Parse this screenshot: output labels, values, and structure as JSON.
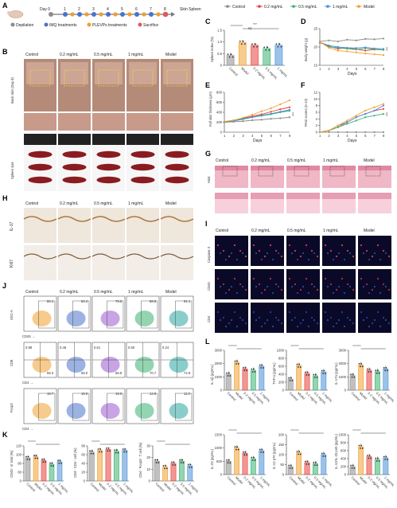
{
  "groups": [
    "Control",
    "0.2 mg/mL",
    "0.5 mg/mL",
    "1 mg/mL",
    "Model"
  ],
  "colors": {
    "Control": "#8c8c8c",
    "0.2 mg/mL": "#e8413b",
    "0.5 mg/mL": "#3cb371",
    "1 mg/mL": "#4b8fd6",
    "Model": "#f0a030",
    "point": "#e05a5a",
    "pink": "#f0b7c6",
    "deeppink": "#d86a8a"
  },
  "panels": {
    "A": {
      "label": "A",
      "days": [
        "Day 0",
        "1",
        "2",
        "3",
        "4",
        "5",
        "6",
        "7",
        "8"
      ],
      "end_labels": [
        "Skin",
        "Spleen"
      ],
      "legend": [
        "Depilation",
        "IMQ treatments",
        "PLEVPs treatments",
        "Sacrifice"
      ]
    },
    "B": {
      "label": "B",
      "row1": "Back skin (Day 8)",
      "row2": "Spleen size"
    },
    "C": {
      "label": "C",
      "ylabel": "Spleen index (%)",
      "sig": [
        "***",
        "ns"
      ],
      "groups": [
        "Control",
        "Model",
        "0.2 mg/mL",
        "0.5 mg/mL",
        "1 mg/mL"
      ]
    },
    "D": {
      "label": "D",
      "ylabel": "Body weight (g)",
      "xlabel": "Days",
      "sig": "***"
    },
    "E": {
      "label": "E",
      "ylabel": "Full skin thickness (μm)",
      "xlabel": "Days",
      "sig": "***"
    },
    "F": {
      "label": "F",
      "ylabel": "PASI scores (0-12)",
      "xlabel": "Days",
      "sig": "***"
    },
    "G": {
      "label": "G",
      "row": "H&E"
    },
    "H": {
      "label": "H",
      "rows": [
        "IL-17",
        "Ki67"
      ]
    },
    "I": {
      "label": "I",
      "rows": [
        "Caspase 3",
        "CD45",
        "CD4"
      ]
    },
    "J": {
      "label": "J",
      "rows": [
        {
          "ylabel": "SSC-A",
          "xlabel": "CD45",
          "values": [
            "80.1",
            "84.4",
            "79.5",
            "88.6",
            "91.1"
          ]
        },
        {
          "ylabel": "CD8",
          "xlabel": "CD4",
          "tl": [
            "0.98",
            "0.48",
            "0.61",
            "0.50",
            "0.24"
          ],
          "br": [
            "58.3",
            "65.0",
            "58.8",
            "70.7",
            "74.9"
          ]
        },
        {
          "ylabel": "Foxp3",
          "xlabel": "CD4",
          "values": [
            "18.7",
            "16.0",
            "19.0",
            "14.6",
            "11.0"
          ]
        }
      ]
    },
    "K": {
      "label": "K",
      "ylabels": [
        "CD45⁺ in total (%)",
        "CD3⁺ CD4⁺ cell (%)",
        "CD4⁺ Foxp3⁺ T cell (%)"
      ]
    },
    "L": {
      "label": "L",
      "ylabels": [
        "IL-1β (pg/mL)",
        "TNF-α (pg/mL)",
        "IL-17α (pg/mL)",
        "IL-23 (pg/mL)",
        "IL-12 p70 (pg/mL)",
        "IL-12/IL-23 p40 (pg/mL)"
      ]
    }
  },
  "chart_data": [
    {
      "id": "C",
      "type": "bar",
      "categories": [
        "Control",
        "Model",
        "0.2 mg/mL",
        "0.5 mg/mL",
        "1 mg/mL"
      ],
      "values": [
        0.42,
        0.98,
        0.86,
        0.72,
        0.86
      ],
      "ylim": [
        0,
        1.5
      ],
      "ylabel": "Spleen index (%)",
      "yticks": [
        "0",
        "0.5",
        "1.0",
        "1.5"
      ]
    },
    {
      "id": "D",
      "type": "line",
      "x": [
        1,
        2,
        3,
        4,
        5,
        6,
        7,
        8
      ],
      "ylim": [
        15,
        25
      ],
      "yticks": [
        "15",
        "20",
        "25"
      ],
      "ylabel": "Body weight (g)",
      "xlabel": "Days",
      "series": [
        {
          "name": "Control",
          "values": [
            21.5,
            21.8,
            21.5,
            22.0,
            21.8,
            22.2,
            22.1,
            22.3
          ]
        },
        {
          "name": "0.2 mg/mL",
          "values": [
            21.2,
            20.2,
            19.5,
            19.8,
            19.4,
            19.0,
            19.3,
            19.2
          ]
        },
        {
          "name": "0.5 mg/mL",
          "values": [
            21.4,
            20.0,
            19.8,
            19.5,
            19.3,
            19.6,
            19.4,
            19.2
          ]
        },
        {
          "name": "1 mg/mL",
          "values": [
            21.3,
            20.4,
            20.0,
            19.8,
            19.7,
            19.9,
            19.6,
            19.5
          ]
        },
        {
          "name": "Model",
          "values": [
            21.4,
            19.8,
            19.0,
            18.8,
            18.5,
            18.2,
            18.0,
            17.8
          ]
        }
      ]
    },
    {
      "id": "E",
      "type": "line",
      "x": [
        1,
        2,
        3,
        4,
        5,
        6,
        7,
        8
      ],
      "ylim": [
        0,
        800
      ],
      "yticks": [
        "0",
        "200",
        "400",
        "600",
        "800"
      ],
      "ylabel": "Full skin thickness (μm)",
      "xlabel": "Days",
      "series": [
        {
          "name": "Control",
          "values": [
            200,
            210,
            220,
            240,
            250,
            270,
            280,
            300
          ]
        },
        {
          "name": "0.2 mg/mL",
          "values": [
            210,
            230,
            280,
            320,
            360,
            410,
            460,
            500
          ]
        },
        {
          "name": "0.5 mg/mL",
          "values": [
            205,
            225,
            260,
            300,
            330,
            360,
            400,
            430
          ]
        },
        {
          "name": "1 mg/mL",
          "values": [
            210,
            230,
            270,
            300,
            340,
            370,
            410,
            450
          ]
        },
        {
          "name": "Model",
          "values": [
            215,
            240,
            290,
            350,
            420,
            480,
            560,
            640
          ]
        }
      ]
    },
    {
      "id": "F",
      "type": "line",
      "x": [
        1,
        2,
        3,
        4,
        5,
        6,
        7,
        8
      ],
      "ylim": [
        0,
        12
      ],
      "yticks": [
        "0",
        "2",
        "4",
        "6",
        "8",
        "10",
        "12"
      ],
      "ylabel": "PASI scores (0-12)",
      "xlabel": "Days",
      "series": [
        {
          "name": "Control",
          "values": [
            0,
            0,
            0,
            0,
            0,
            0,
            0,
            0
          ]
        },
        {
          "name": "0.2 mg/mL",
          "values": [
            0,
            0.5,
            1.5,
            3,
            4.5,
            5.5,
            6.5,
            7
          ]
        },
        {
          "name": "0.5 mg/mL",
          "values": [
            0,
            0.5,
            1.5,
            2.5,
            3.5,
            4.5,
            5,
            5.5
          ]
        },
        {
          "name": "1 mg/mL",
          "values": [
            0,
            0.5,
            2,
            3,
            4.5,
            5.5,
            6.5,
            8
          ]
        },
        {
          "name": "Model",
          "values": [
            0,
            0.5,
            2,
            3.5,
            5,
            6.5,
            7.5,
            8.5
          ]
        }
      ]
    },
    {
      "id": "K1",
      "type": "bar",
      "categories": [
        "Control",
        "Model",
        "0.2 mg/mL",
        "0.5 mg/mL",
        "1 mg/mL"
      ],
      "values": [
        79,
        83,
        70,
        57,
        66
      ],
      "ylim": [
        0,
        120
      ],
      "yticks": [
        "0",
        "60",
        "80",
        "100",
        "120"
      ],
      "ylabel": "CD45⁺ in total (%)"
    },
    {
      "id": "K2",
      "type": "bar",
      "categories": [
        "Control",
        "Model",
        "0.2 mg/mL",
        "0.5 mg/mL",
        "1 mg/mL"
      ],
      "values": [
        66,
        70,
        72,
        68,
        70
      ],
      "ylim": [
        0,
        80
      ],
      "yticks": [
        "0",
        "20",
        "40",
        "60",
        "80"
      ],
      "ylabel": "CD3⁺ CD4⁺ cell (%)"
    },
    {
      "id": "K3",
      "type": "bar",
      "categories": [
        "Control",
        "Model",
        "0.2 mg/mL",
        "0.5 mg/mL",
        "1 mg/mL"
      ],
      "values": [
        17,
        12,
        15,
        17,
        13
      ],
      "ylim": [
        0,
        30
      ],
      "yticks": [
        "0",
        "10",
        "20",
        "30"
      ],
      "ylabel": "CD4⁺ Foxp3⁺ T cell (%)"
    },
    {
      "id": "L1",
      "type": "bar",
      "categories": [
        "Control",
        "Model",
        "0.2 mg/mL",
        "0.5 mg/mL",
        "1 mg/mL"
      ],
      "values": [
        1200,
        2100,
        1600,
        1500,
        1800
      ],
      "ylim": [
        0,
        3000
      ],
      "yticks": [
        "0",
        "1000",
        "2000",
        "3000"
      ],
      "ylabel": "IL-1β (pg/mL)"
    },
    {
      "id": "L2",
      "type": "bar",
      "categories": [
        "Control",
        "Model",
        "0.2 mg/mL",
        "0.5 mg/mL",
        "1 mg/mL"
      ],
      "values": [
        280,
        620,
        420,
        360,
        460
      ],
      "ylim": [
        0,
        1000
      ],
      "yticks": [
        "0",
        "200",
        "400",
        "600",
        "800",
        "1000"
      ],
      "ylabel": "TNF-α (pg/mL)"
    },
    {
      "id": "L3",
      "type": "bar",
      "categories": [
        "Control",
        "Model",
        "0.2 mg/mL",
        "0.5 mg/mL",
        "1 mg/mL"
      ],
      "values": [
        1100,
        1900,
        1500,
        1400,
        1600
      ],
      "ylim": [
        0,
        3000
      ],
      "yticks": [
        "0",
        "1000",
        "2000",
        "3000"
      ],
      "ylabel": "IL-17α (pg/mL)"
    },
    {
      "id": "L4",
      "type": "bar",
      "categories": [
        "Control",
        "Model",
        "0.2 mg/mL",
        "0.5 mg/mL",
        "1 mg/mL"
      ],
      "values": [
        500,
        1000,
        800,
        600,
        900
      ],
      "ylim": [
        0,
        1500
      ],
      "yticks": [
        "0",
        "500",
        "1000",
        "1500"
      ],
      "ylabel": "IL-23 (pg/mL)"
    },
    {
      "id": "L5",
      "type": "bar",
      "categories": [
        "Control",
        "Model",
        "0.2 mg/mL",
        "0.5 mg/mL",
        "1 mg/mL"
      ],
      "values": [
        40,
        110,
        60,
        55,
        100
      ],
      "ylim": [
        0,
        200
      ],
      "yticks": [
        "0",
        "50",
        "100",
        "150",
        "200"
      ],
      "ylabel": "IL-12 p70 (pg/mL)"
    },
    {
      "id": "L6",
      "type": "bar",
      "categories": [
        "Control",
        "Model",
        "0.2 mg/mL",
        "0.5 mg/mL",
        "1 mg/mL"
      ],
      "values": [
        200,
        700,
        450,
        380,
        420
      ],
      "ylim": [
        0,
        1000
      ],
      "yticks": [
        "0",
        "200",
        "400",
        "600",
        "800",
        "1000"
      ],
      "ylabel": "IL-12/IL-23 p40 (pg/mL)"
    }
  ]
}
